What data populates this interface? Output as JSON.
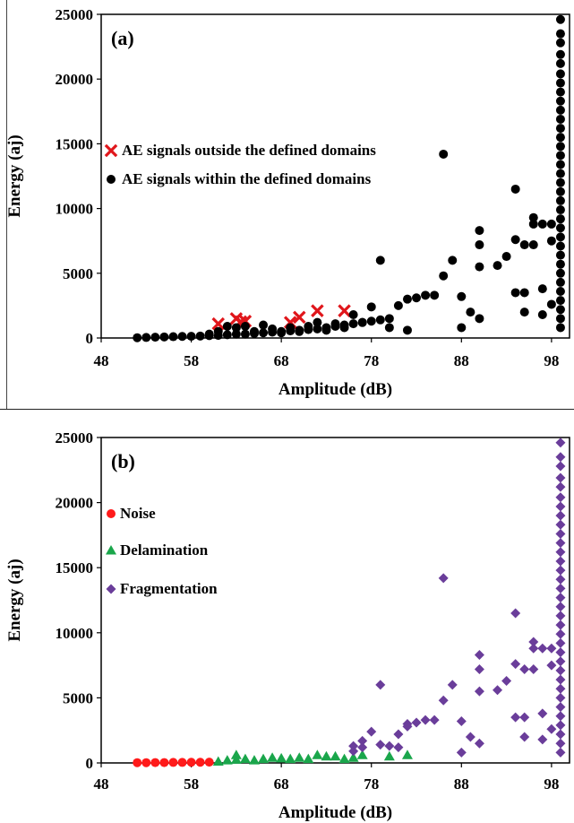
{
  "chart_data": [
    {
      "type": "scatter",
      "panel_label": "(a)",
      "xlabel": "Amplitude (dB)",
      "ylabel": "Energy (aj)",
      "xlim": [
        48,
        100
      ],
      "ylim": [
        0,
        25000
      ],
      "xticks": [
        48,
        58,
        68,
        78,
        88,
        98
      ],
      "yticks": [
        0,
        5000,
        10000,
        15000,
        20000,
        25000
      ],
      "grid": false,
      "legend_position": "upper-left",
      "series": [
        {
          "name": "AE signals outside the defined domains",
          "marker": "x",
          "color": "#e0161b",
          "points": [
            [
              61,
              1100
            ],
            [
              63,
              1500
            ],
            [
              64,
              1300
            ],
            [
              63.5,
              1250
            ],
            [
              69,
              1200
            ],
            [
              70,
              1600
            ],
            [
              72,
              2100
            ],
            [
              75,
              2100
            ]
          ]
        },
        {
          "name": "AE signals within the defined domains",
          "marker": "circle",
          "color": "#000000",
          "points": [
            [
              52,
              20
            ],
            [
              53,
              40
            ],
            [
              54,
              60
            ],
            [
              55,
              80
            ],
            [
              56,
              100
            ],
            [
              57,
              120
            ],
            [
              58,
              130
            ],
            [
              59,
              150
            ],
            [
              60,
              180
            ],
            [
              61,
              200
            ],
            [
              62,
              250
            ],
            [
              63,
              300
            ],
            [
              64,
              300
            ],
            [
              65,
              350
            ],
            [
              66,
              400
            ],
            [
              67,
              450
            ],
            [
              68,
              500
            ],
            [
              69,
              550
            ],
            [
              70,
              600
            ],
            [
              71,
              650
            ],
            [
              72,
              700
            ],
            [
              73,
              800
            ],
            [
              74,
              900
            ],
            [
              75,
              1000
            ],
            [
              76,
              1100
            ],
            [
              77,
              1200
            ],
            [
              78,
              1300
            ],
            [
              79,
              1400
            ],
            [
              80,
              1500
            ],
            [
              60,
              300
            ],
            [
              61,
              500
            ],
            [
              62,
              900
            ],
            [
              63,
              800
            ],
            [
              64,
              900
            ],
            [
              65,
              500
            ],
            [
              66,
              1000
            ],
            [
              67,
              700
            ],
            [
              68,
              400
            ],
            [
              69,
              800
            ],
            [
              70,
              500
            ],
            [
              71,
              900
            ],
            [
              72,
              1200
            ],
            [
              73,
              600
            ],
            [
              74,
              1100
            ],
            [
              75,
              800
            ],
            [
              76,
              1800
            ],
            [
              77,
              1200
            ],
            [
              78,
              2400
            ],
            [
              79,
              6000
            ],
            [
              80,
              800
            ],
            [
              81,
              2500
            ],
            [
              82,
              3000
            ],
            [
              82,
              600
            ],
            [
              83,
              3100
            ],
            [
              84,
              3300
            ],
            [
              85,
              3300
            ],
            [
              86,
              14200
            ],
            [
              86,
              4800
            ],
            [
              87,
              6000
            ],
            [
              88,
              3200
            ],
            [
              88,
              800
            ],
            [
              89,
              2000
            ],
            [
              90,
              8300
            ],
            [
              90,
              7200
            ],
            [
              90,
              5500
            ],
            [
              90,
              1500
            ],
            [
              92,
              5600
            ],
            [
              93,
              6300
            ],
            [
              94,
              11500
            ],
            [
              94,
              7600
            ],
            [
              94,
              3500
            ],
            [
              95,
              7200
            ],
            [
              95,
              3500
            ],
            [
              95,
              2000
            ],
            [
              96,
              9300
            ],
            [
              96,
              8800
            ],
            [
              96,
              7200
            ],
            [
              97,
              8800
            ],
            [
              97,
              3800
            ],
            [
              97,
              1800
            ],
            [
              98,
              8800
            ],
            [
              98,
              7500
            ],
            [
              98,
              2600
            ],
            [
              99,
              24600
            ],
            [
              99,
              23500
            ],
            [
              99,
              22800
            ],
            [
              99,
              21900
            ],
            [
              99,
              21200
            ],
            [
              99,
              20400
            ],
            [
              99,
              19700
            ],
            [
              99,
              19000
            ],
            [
              99,
              18300
            ],
            [
              99,
              17600
            ],
            [
              99,
              16900
            ],
            [
              99,
              16200
            ],
            [
              99,
              15500
            ],
            [
              99,
              14800
            ],
            [
              99,
              14100
            ],
            [
              99,
              13400
            ],
            [
              99,
              12700
            ],
            [
              99,
              12000
            ],
            [
              99,
              11300
            ],
            [
              99,
              10600
            ],
            [
              99,
              9900
            ],
            [
              99,
              9200
            ],
            [
              99,
              8500
            ],
            [
              99,
              7800
            ],
            [
              99,
              7100
            ],
            [
              99,
              6400
            ],
            [
              99,
              5700
            ],
            [
              99,
              5000
            ],
            [
              99,
              4300
            ],
            [
              99,
              3600
            ],
            [
              99,
              2900
            ],
            [
              99,
              2200
            ],
            [
              99,
              1500
            ],
            [
              99,
              800
            ]
          ]
        }
      ]
    },
    {
      "type": "scatter",
      "panel_label": "(b)",
      "xlabel": "Amplitude (dB)",
      "ylabel": "Energy (aj)",
      "xlim": [
        48,
        100
      ],
      "ylim": [
        0,
        25000
      ],
      "xticks": [
        48,
        58,
        68,
        78,
        88,
        98
      ],
      "yticks": [
        0,
        5000,
        10000,
        15000,
        20000,
        25000
      ],
      "grid": false,
      "legend_position": "upper-left",
      "series": [
        {
          "name": "Noise",
          "marker": "circle",
          "color": "#ff1a1a",
          "points": [
            [
              52,
              20
            ],
            [
              53,
              20
            ],
            [
              54,
              30
            ],
            [
              55,
              30
            ],
            [
              56,
              40
            ],
            [
              57,
              40
            ],
            [
              58,
              50
            ],
            [
              59,
              50
            ],
            [
              60,
              60
            ]
          ]
        },
        {
          "name": "Delamination",
          "marker": "triangle",
          "color": "#1aa64b",
          "points": [
            [
              61,
              100
            ],
            [
              62,
              200
            ],
            [
              63,
              600
            ],
            [
              63,
              250
            ],
            [
              64,
              300
            ],
            [
              65,
              200
            ],
            [
              66,
              300
            ],
            [
              67,
              400
            ],
            [
              68,
              350
            ],
            [
              69,
              300
            ],
            [
              70,
              400
            ],
            [
              71,
              300
            ],
            [
              72,
              600
            ],
            [
              73,
              500
            ],
            [
              74,
              500
            ],
            [
              75,
              300
            ],
            [
              76,
              400
            ],
            [
              77,
              600
            ],
            [
              80,
              500
            ],
            [
              82,
              600
            ]
          ]
        },
        {
          "name": "Fragmentation",
          "marker": "diamond",
          "color": "#6a3d9a",
          "points": [
            [
              76,
              900
            ],
            [
              76,
              1300
            ],
            [
              77,
              1200
            ],
            [
              77,
              1700
            ],
            [
              78,
              2400
            ],
            [
              79,
              6000
            ],
            [
              79,
              1400
            ],
            [
              80,
              1300
            ],
            [
              81,
              2200
            ],
            [
              81,
              1200
            ],
            [
              82,
              3000
            ],
            [
              82,
              2800
            ],
            [
              83,
              3100
            ],
            [
              84,
              3300
            ],
            [
              85,
              3300
            ],
            [
              86,
              14200
            ],
            [
              86,
              4800
            ],
            [
              87,
              6000
            ],
            [
              88,
              3200
            ],
            [
              88,
              800
            ],
            [
              89,
              2000
            ],
            [
              90,
              8300
            ],
            [
              90,
              7200
            ],
            [
              90,
              5500
            ],
            [
              90,
              1500
            ],
            [
              92,
              5600
            ],
            [
              93,
              6300
            ],
            [
              94,
              11500
            ],
            [
              94,
              7600
            ],
            [
              94,
              3500
            ],
            [
              95,
              7200
            ],
            [
              95,
              3500
            ],
            [
              95,
              2000
            ],
            [
              96,
              9300
            ],
            [
              96,
              8800
            ],
            [
              96,
              7200
            ],
            [
              97,
              8800
            ],
            [
              97,
              3800
            ],
            [
              97,
              1800
            ],
            [
              98,
              8800
            ],
            [
              98,
              7500
            ],
            [
              98,
              2600
            ],
            [
              99,
              24600
            ],
            [
              99,
              23500
            ],
            [
              99,
              22800
            ],
            [
              99,
              21900
            ],
            [
              99,
              21200
            ],
            [
              99,
              20400
            ],
            [
              99,
              19700
            ],
            [
              99,
              19000
            ],
            [
              99,
              18300
            ],
            [
              99,
              17600
            ],
            [
              99,
              16900
            ],
            [
              99,
              16200
            ],
            [
              99,
              15500
            ],
            [
              99,
              14800
            ],
            [
              99,
              14100
            ],
            [
              99,
              13400
            ],
            [
              99,
              12700
            ],
            [
              99,
              12000
            ],
            [
              99,
              11300
            ],
            [
              99,
              10600
            ],
            [
              99,
              9900
            ],
            [
              99,
              9200
            ],
            [
              99,
              8500
            ],
            [
              99,
              7800
            ],
            [
              99,
              7100
            ],
            [
              99,
              6400
            ],
            [
              99,
              5700
            ],
            [
              99,
              5000
            ],
            [
              99,
              4300
            ],
            [
              99,
              3600
            ],
            [
              99,
              2900
            ],
            [
              99,
              2200
            ],
            [
              99,
              1500
            ],
            [
              99,
              800
            ]
          ]
        }
      ]
    }
  ]
}
